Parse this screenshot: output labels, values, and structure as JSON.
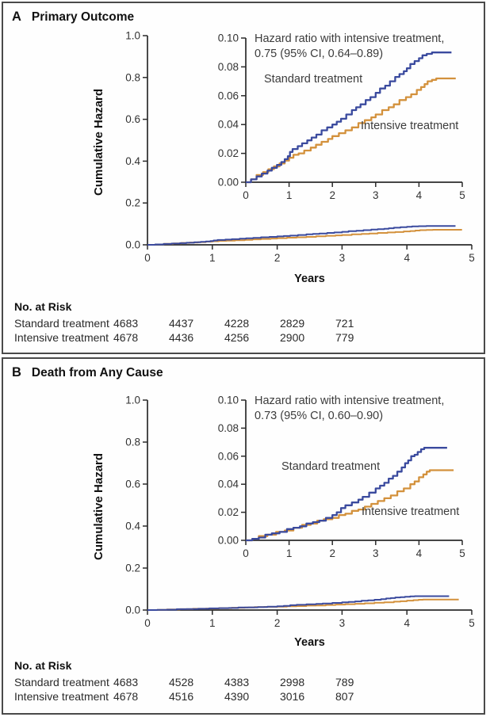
{
  "colors": {
    "standard_blue": "#3a4a9e",
    "intensive_orange": "#d3913c",
    "axis": "#2b2b2b",
    "tick_text": "#333333"
  },
  "panels": [
    {
      "letter": "A",
      "title": "Primary Outcome",
      "ylabel": "Cumulative Hazard",
      "xlabel": "Years",
      "annotation_line1": "Hazard ratio with intensive treatment,",
      "annotation_line2": "0.75 (95% CI, 0.64–0.89)",
      "labels": {
        "standard": "Standard treatment",
        "intensive": "Intensive treatment"
      },
      "risk_table": {
        "header": "No. at Risk",
        "rows": [
          {
            "label": "Standard treatment",
            "values": [
              4683,
              4437,
              4228,
              2829,
              721
            ]
          },
          {
            "label": "Intensive treatment",
            "values": [
              4678,
              4436,
              4256,
              2900,
              779
            ]
          }
        ]
      }
    },
    {
      "letter": "B",
      "title": "Death from Any Cause",
      "ylabel": "Cumulative Hazard",
      "xlabel": "Years",
      "annotation_line1": "Hazard ratio with intensive treatment,",
      "annotation_line2": "0.73 (95% CI, 0.60–0.90)",
      "labels": {
        "standard": "Standard treatment",
        "intensive": "Intensive treatment"
      },
      "risk_table": {
        "header": "No. at Risk",
        "rows": [
          {
            "label": "Standard treatment",
            "values": [
              4683,
              4528,
              4383,
              2998,
              789
            ]
          },
          {
            "label": "Intensive treatment",
            "values": [
              4678,
              4516,
              4390,
              3016,
              807
            ]
          }
        ]
      }
    }
  ],
  "chart_data": [
    {
      "panel": "A",
      "type": "line",
      "title": "Primary Outcome",
      "xlabel": "Years",
      "ylabel": "Cumulative Hazard",
      "hazard_ratio": "0.75 (95% CI, 0.64–0.89)",
      "xlim": [
        0,
        5
      ],
      "xticks": [
        "0",
        "1",
        "2",
        "3",
        "4",
        "5"
      ],
      "main_ylim": [
        0,
        1.0
      ],
      "main_yticks": [
        "0.0",
        "0.2",
        "0.4",
        "0.6",
        "0.8",
        "1.0"
      ],
      "inset_ylim": [
        0,
        0.1
      ],
      "inset_yticks": [
        "0.00",
        "0.02",
        "0.04",
        "0.06",
        "0.08",
        "0.10"
      ],
      "series": [
        {
          "name": "Intensive treatment",
          "color_key": "intensive_orange",
          "points": [
            [
              0,
              0
            ],
            [
              0.12,
              0.002
            ],
            [
              0.25,
              0.005
            ],
            [
              0.4,
              0.007
            ],
            [
              0.52,
              0.009
            ],
            [
              0.65,
              0.011
            ],
            [
              0.78,
              0.013
            ],
            [
              0.9,
              0.015
            ],
            [
              1.0,
              0.017
            ],
            [
              1.1,
              0.019
            ],
            [
              1.22,
              0.02
            ],
            [
              1.35,
              0.022
            ],
            [
              1.5,
              0.024
            ],
            [
              1.62,
              0.026
            ],
            [
              1.75,
              0.028
            ],
            [
              1.9,
              0.03
            ],
            [
              2.0,
              0.032
            ],
            [
              2.15,
              0.034
            ],
            [
              2.3,
              0.036
            ],
            [
              2.45,
              0.038
            ],
            [
              2.6,
              0.041
            ],
            [
              2.75,
              0.043
            ],
            [
              2.9,
              0.045
            ],
            [
              3.0,
              0.047
            ],
            [
              3.15,
              0.05
            ],
            [
              3.3,
              0.052
            ],
            [
              3.42,
              0.054
            ],
            [
              3.55,
              0.057
            ],
            [
              3.7,
              0.059
            ],
            [
              3.82,
              0.061
            ],
            [
              3.95,
              0.064
            ],
            [
              4.05,
              0.066
            ],
            [
              4.13,
              0.068
            ],
            [
              4.2,
              0.07
            ],
            [
              4.3,
              0.071
            ],
            [
              4.4,
              0.072
            ],
            [
              4.85,
              0.072
            ]
          ]
        },
        {
          "name": "Standard treatment",
          "color_key": "standard_blue",
          "points": [
            [
              0,
              0
            ],
            [
              0.12,
              0.002
            ],
            [
              0.25,
              0.004
            ],
            [
              0.37,
              0.006
            ],
            [
              0.5,
              0.008
            ],
            [
              0.6,
              0.01
            ],
            [
              0.72,
              0.012
            ],
            [
              0.82,
              0.014
            ],
            [
              0.9,
              0.016
            ],
            [
              0.97,
              0.018
            ],
            [
              1.02,
              0.021
            ],
            [
              1.08,
              0.023
            ],
            [
              1.2,
              0.025
            ],
            [
              1.3,
              0.027
            ],
            [
              1.42,
              0.029
            ],
            [
              1.52,
              0.031
            ],
            [
              1.63,
              0.033
            ],
            [
              1.75,
              0.036
            ],
            [
              1.88,
              0.038
            ],
            [
              2.0,
              0.04
            ],
            [
              2.1,
              0.042
            ],
            [
              2.2,
              0.044
            ],
            [
              2.32,
              0.047
            ],
            [
              2.45,
              0.05
            ],
            [
              2.55,
              0.052
            ],
            [
              2.65,
              0.054
            ],
            [
              2.77,
              0.057
            ],
            [
              2.88,
              0.059
            ],
            [
              3.0,
              0.062
            ],
            [
              3.1,
              0.065
            ],
            [
              3.22,
              0.067
            ],
            [
              3.33,
              0.07
            ],
            [
              3.45,
              0.073
            ],
            [
              3.55,
              0.075
            ],
            [
              3.65,
              0.077
            ],
            [
              3.72,
              0.079
            ],
            [
              3.8,
              0.082
            ],
            [
              3.9,
              0.084
            ],
            [
              4.0,
              0.086
            ],
            [
              4.08,
              0.088
            ],
            [
              4.18,
              0.089
            ],
            [
              4.3,
              0.09
            ],
            [
              4.75,
              0.09
            ]
          ]
        }
      ]
    },
    {
      "panel": "B",
      "type": "line",
      "title": "Death from Any Cause",
      "xlabel": "Years",
      "ylabel": "Cumulative Hazard",
      "hazard_ratio": "0.73 (95% CI, 0.60–0.90)",
      "xlim": [
        0,
        5
      ],
      "xticks": [
        "0",
        "1",
        "2",
        "3",
        "4",
        "5"
      ],
      "main_ylim": [
        0,
        1.0
      ],
      "main_yticks": [
        "0.0",
        "0.2",
        "0.4",
        "0.6",
        "0.8",
        "1.0"
      ],
      "inset_ylim": [
        0,
        0.1
      ],
      "inset_yticks": [
        "0.00",
        "0.02",
        "0.04",
        "0.06",
        "0.08",
        "0.10"
      ],
      "series": [
        {
          "name": "Intensive treatment",
          "color_key": "intensive_orange",
          "points": [
            [
              0,
              0
            ],
            [
              0.15,
              0.001
            ],
            [
              0.3,
              0.003
            ],
            [
              0.5,
              0.004
            ],
            [
              0.7,
              0.006
            ],
            [
              0.9,
              0.007
            ],
            [
              1.1,
              0.009
            ],
            [
              1.3,
              0.011
            ],
            [
              1.5,
              0.012
            ],
            [
              1.65,
              0.014
            ],
            [
              1.8,
              0.015
            ],
            [
              2.0,
              0.016
            ],
            [
              2.15,
              0.018
            ],
            [
              2.3,
              0.019
            ],
            [
              2.45,
              0.021
            ],
            [
              2.6,
              0.022
            ],
            [
              2.75,
              0.024
            ],
            [
              2.9,
              0.026
            ],
            [
              3.05,
              0.028
            ],
            [
              3.2,
              0.03
            ],
            [
              3.35,
              0.032
            ],
            [
              3.5,
              0.035
            ],
            [
              3.65,
              0.037
            ],
            [
              3.8,
              0.04
            ],
            [
              3.9,
              0.042
            ],
            [
              4.0,
              0.045
            ],
            [
              4.1,
              0.047
            ],
            [
              4.18,
              0.049
            ],
            [
              4.25,
              0.05
            ],
            [
              4.8,
              0.05
            ]
          ]
        },
        {
          "name": "Standard treatment",
          "color_key": "standard_blue",
          "points": [
            [
              0,
              0
            ],
            [
              0.15,
              0.001
            ],
            [
              0.3,
              0.002
            ],
            [
              0.45,
              0.004
            ],
            [
              0.6,
              0.005
            ],
            [
              0.78,
              0.006
            ],
            [
              0.95,
              0.008
            ],
            [
              1.1,
              0.009
            ],
            [
              1.25,
              0.01
            ],
            [
              1.4,
              0.012
            ],
            [
              1.55,
              0.013
            ],
            [
              1.7,
              0.014
            ],
            [
              1.85,
              0.016
            ],
            [
              2.0,
              0.018
            ],
            [
              2.1,
              0.02
            ],
            [
              2.2,
              0.023
            ],
            [
              2.3,
              0.025
            ],
            [
              2.45,
              0.027
            ],
            [
              2.6,
              0.029
            ],
            [
              2.7,
              0.031
            ],
            [
              2.85,
              0.034
            ],
            [
              3.0,
              0.037
            ],
            [
              3.1,
              0.039
            ],
            [
              3.2,
              0.041
            ],
            [
              3.3,
              0.044
            ],
            [
              3.4,
              0.046
            ],
            [
              3.5,
              0.049
            ],
            [
              3.6,
              0.052
            ],
            [
              3.68,
              0.055
            ],
            [
              3.75,
              0.057
            ],
            [
              3.82,
              0.06
            ],
            [
              3.9,
              0.061
            ],
            [
              3.97,
              0.063
            ],
            [
              4.05,
              0.065
            ],
            [
              4.12,
              0.066
            ],
            [
              4.65,
              0.066
            ]
          ]
        }
      ]
    }
  ]
}
